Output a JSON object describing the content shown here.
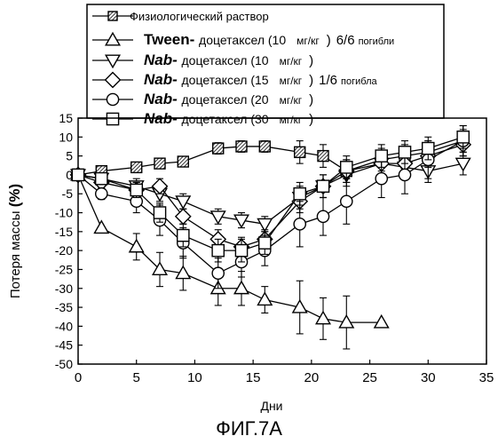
{
  "chart_data": {
    "type": "line",
    "xlabel": "Дни",
    "ylabel": "Потеря массы",
    "ylabel_unit": "(%)",
    "xlim": [
      0,
      35
    ],
    "ylim": [
      -50,
      15
    ],
    "x_ticks": [
      0,
      5,
      10,
      15,
      20,
      25,
      30,
      35
    ],
    "y_ticks": [
      15,
      10,
      5,
      0,
      -5,
      -10,
      -15,
      -20,
      -25,
      -30,
      -35,
      -40,
      -45,
      -50
    ],
    "grid": false,
    "legend_position": "top",
    "series": [
      {
        "name": "Физиологический раствор",
        "marker": "hatched-square",
        "x": [
          0,
          2,
          5,
          7,
          9,
          12,
          14,
          16,
          19,
          21,
          23,
          26,
          28,
          30,
          33
        ],
        "y": [
          0,
          1,
          2,
          3,
          3.5,
          7,
          7.5,
          7.5,
          6,
          5,
          1,
          4,
          5,
          6,
          9
        ],
        "err": [
          0,
          1,
          1,
          1,
          1,
          1.5,
          1.5,
          1.5,
          3,
          3,
          3,
          3,
          3,
          3,
          3
        ]
      },
      {
        "name": "Tween- доцетаксел (10 мг/кг ) 6/6погибли",
        "marker": "triangle-up",
        "x": [
          0,
          2,
          5,
          7,
          9,
          12,
          14,
          16,
          19,
          21,
          23,
          26
        ],
        "y": [
          0,
          -14,
          -19,
          -25,
          -26,
          -30,
          -30,
          -33,
          -35,
          -38,
          -39,
          -39
        ],
        "err": [
          0,
          0,
          3.5,
          4.5,
          4.5,
          4.5,
          4.5,
          3.5,
          7,
          5.5,
          7,
          0
        ]
      },
      {
        "name": "Nab- доцетаксел (10 мг/кг )",
        "marker": "triangle-down",
        "x": [
          0,
          2,
          5,
          7,
          9,
          12,
          14,
          16,
          19,
          21,
          23,
          26,
          28,
          30,
          33
        ],
        "y": [
          0,
          -1,
          -3,
          -5,
          -7,
          -11,
          -12,
          -13,
          -6,
          -3,
          0,
          3,
          2,
          1,
          3
        ],
        "err": [
          0,
          1,
          2,
          2,
          2,
          2,
          2,
          2,
          3,
          3,
          3,
          3,
          3,
          3,
          3
        ]
      },
      {
        "name": "Nab- доцетаксел (15 мг/кг ) 1/6 погибла",
        "marker": "diamond",
        "x": [
          0,
          2,
          5,
          7,
          9,
          12,
          14,
          16,
          19,
          21,
          23,
          26,
          28,
          30,
          33
        ],
        "y": [
          0,
          -2,
          -4,
          -3,
          -11,
          -17,
          -19,
          -17,
          -7,
          -3,
          1,
          3,
          3,
          5,
          8
        ],
        "err": [
          0,
          1,
          2,
          2,
          2,
          2.5,
          2.5,
          2.5,
          3,
          3,
          3,
          3,
          3,
          3,
          3
        ]
      },
      {
        "name": "Nab- доцетаксел (20 мг/кг )",
        "marker": "circle",
        "x": [
          0,
          2,
          5,
          7,
          9,
          12,
          14,
          16,
          19,
          21,
          23,
          26,
          28,
          30,
          33
        ],
        "y": [
          0,
          -5,
          -7,
          -12,
          -18,
          -26,
          -23,
          -20,
          -13,
          -11,
          -7,
          -1,
          0,
          4,
          9
        ],
        "err": [
          0,
          1.5,
          3,
          4,
          4,
          4,
          4,
          4,
          6,
          5,
          6,
          5,
          5,
          5,
          4
        ]
      },
      {
        "name": "Nab- доцетаксел (30 мг/кг )",
        "marker": "square",
        "x": [
          0,
          2,
          5,
          7,
          9,
          12,
          14,
          16,
          19,
          21,
          23,
          26,
          28,
          30,
          33
        ],
        "y": [
          0,
          -1,
          -4,
          -10,
          -16,
          -20,
          -20,
          -18,
          -5,
          -3,
          2,
          5,
          6,
          7,
          10
        ],
        "err": [
          0,
          1,
          2,
          2.5,
          3,
          3,
          3,
          3,
          3,
          3,
          3,
          3,
          3,
          3,
          3
        ]
      }
    ]
  },
  "legend_entries": [
    {
      "prefix": "",
      "text": "Физиологический раствор",
      "suffix": "",
      "suffix_small": ""
    },
    {
      "prefix": "Tween-",
      "text": "доцетаксел (10",
      "unit": "мг/кг",
      "close": ")",
      "suffix": "6/6",
      "suffix_small": "погибли"
    },
    {
      "prefix": "Nab-",
      "text": "доцетаксел (10",
      "unit": "мг/кг",
      "close": ")",
      "suffix": "",
      "suffix_small": ""
    },
    {
      "prefix": "Nab-",
      "text": "доцетаксел (15",
      "unit": "мг/кг",
      "close": ")",
      "suffix": "1/6",
      "suffix_small": "погибла"
    },
    {
      "prefix": "Nab-",
      "text": "доцетаксел (20",
      "unit": "мг/кг",
      "close": ")",
      "suffix": "",
      "suffix_small": ""
    },
    {
      "prefix": "Nab-",
      "text": "доцетаксел (30",
      "unit": "мг/кг",
      "close": ")",
      "suffix": "",
      "suffix_small": ""
    }
  ],
  "figure_caption": "ФИГ.7A",
  "colors": {
    "ink": "#000000",
    "background": "#ffffff"
  }
}
